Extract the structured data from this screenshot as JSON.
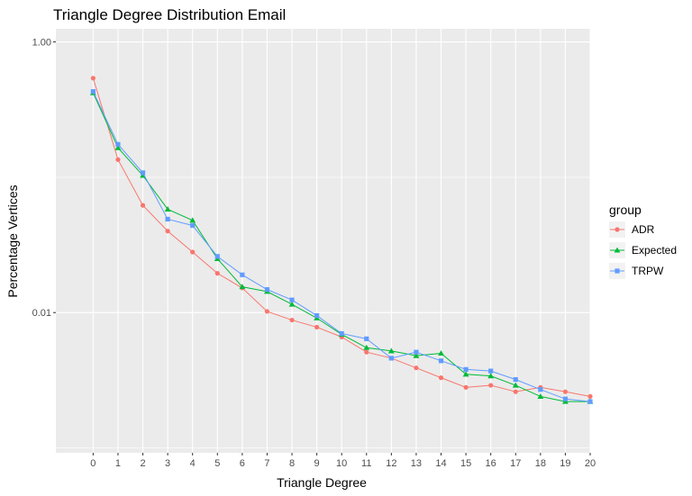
{
  "chart_data": {
    "type": "line",
    "title": "Triangle Degree Distribution Email",
    "xlabel": "Triangle Degree",
    "ylabel": "Percentage Vertices",
    "y_scale": "log",
    "xlim": [
      -1.5,
      20
    ],
    "ylim": [
      0.00092,
      1.25
    ],
    "x": [
      0,
      1,
      2,
      3,
      4,
      5,
      6,
      7,
      8,
      9,
      10,
      11,
      12,
      13,
      14,
      15,
      16,
      17,
      18,
      19,
      20
    ],
    "x_tick_labels": [
      "0",
      "1",
      "2",
      "3",
      "4",
      "5",
      "6",
      "7",
      "8",
      "9",
      "10",
      "11",
      "12",
      "13",
      "14",
      "15",
      "16",
      "17",
      "18",
      "19",
      "20"
    ],
    "y_ticks": [
      1.0,
      0.01
    ],
    "y_tick_labels": [
      "1.00",
      "0.01"
    ],
    "grid": true,
    "legend_title": "group",
    "legend_position": "right",
    "series": [
      {
        "name": "ADR",
        "color": "#F8766D",
        "marker": "circle",
        "values": [
          0.54,
          0.135,
          0.062,
          0.04,
          0.028,
          0.0195,
          0.0152,
          0.0102,
          0.0088,
          0.0078,
          0.0066,
          0.0051,
          0.0046,
          0.0039,
          0.0033,
          0.0028,
          0.0029,
          0.0026,
          0.0028,
          0.0026,
          0.0024
        ]
      },
      {
        "name": "Expected",
        "color": "#00BA38",
        "marker": "triangle",
        "values": [
          0.42,
          0.165,
          0.103,
          0.058,
          0.048,
          0.025,
          0.0155,
          0.0143,
          0.0115,
          0.0091,
          0.0069,
          0.0055,
          0.0052,
          0.0048,
          0.005,
          0.0035,
          0.0034,
          0.0029,
          0.0024,
          0.0022,
          0.0022
        ]
      },
      {
        "name": "TRPW",
        "color": "#619CFF",
        "marker": "square",
        "values": [
          0.43,
          0.175,
          0.108,
          0.049,
          0.044,
          0.026,
          0.019,
          0.0148,
          0.0124,
          0.0095,
          0.007,
          0.0064,
          0.0046,
          0.0051,
          0.0044,
          0.0038,
          0.0037,
          0.0032,
          0.0027,
          0.0023,
          0.0022
        ]
      }
    ]
  }
}
